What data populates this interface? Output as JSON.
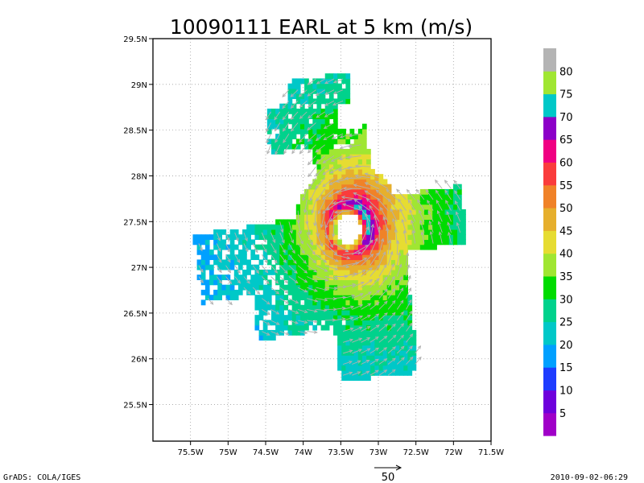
{
  "chart_data": {
    "type": "heatmap",
    "title": "10090111 EARL at 5 km (m/s)",
    "xlim": [
      -76,
      -71.5
    ],
    "ylim": [
      25.1,
      29.5
    ],
    "x_ticks": [
      {
        "value": -75.5,
        "label": "75.5W"
      },
      {
        "value": -75,
        "label": "75W"
      },
      {
        "value": -74.5,
        "label": "74.5W"
      },
      {
        "value": -74,
        "label": "74W"
      },
      {
        "value": -73.5,
        "label": "73.5W"
      },
      {
        "value": -73,
        "label": "73W"
      },
      {
        "value": -72.5,
        "label": "72.5W"
      },
      {
        "value": -72,
        "label": "72W"
      },
      {
        "value": -71.5,
        "label": "71.5W"
      }
    ],
    "y_ticks": [
      {
        "value": 25.5,
        "label": "25.5N"
      },
      {
        "value": 26,
        "label": "26N"
      },
      {
        "value": 26.5,
        "label": "26.5N"
      },
      {
        "value": 27,
        "label": "27N"
      },
      {
        "value": 27.5,
        "label": "27.5N"
      },
      {
        "value": 28,
        "label": "28N"
      },
      {
        "value": 28.5,
        "label": "28.5N"
      },
      {
        "value": 29,
        "label": "29N"
      },
      {
        "value": 29.5,
        "label": "29.5N"
      }
    ],
    "grid": true,
    "colorbar": {
      "labels": [
        "5",
        "10",
        "15",
        "20",
        "25",
        "30",
        "35",
        "40",
        "45",
        "50",
        "55",
        "60",
        "65",
        "70",
        "75",
        "80"
      ],
      "colors": [
        "#a000c8",
        "#6e00dc",
        "#1e3cff",
        "#00a0ff",
        "#00c8c8",
        "#00d28c",
        "#00dc00",
        "#a0e632",
        "#e6dc32",
        "#e6af2d",
        "#f08228",
        "#fa3c3c",
        "#f00082",
        "#8c00c8",
        "#00c8c8",
        "#a0e632",
        "#b4b4b4"
      ]
    },
    "storm_center": {
      "lon": -73.4,
      "lat": 27.42
    },
    "field_shape": "four-arm radial coverage centered on storm; max winds ~70 m/s in eyewall north-east of center",
    "reference_vector": {
      "label": "50",
      "value": 50
    }
  },
  "footer": {
    "left": "GrADS: COLA/IGES",
    "right": "2010-09-02-06:29"
  }
}
